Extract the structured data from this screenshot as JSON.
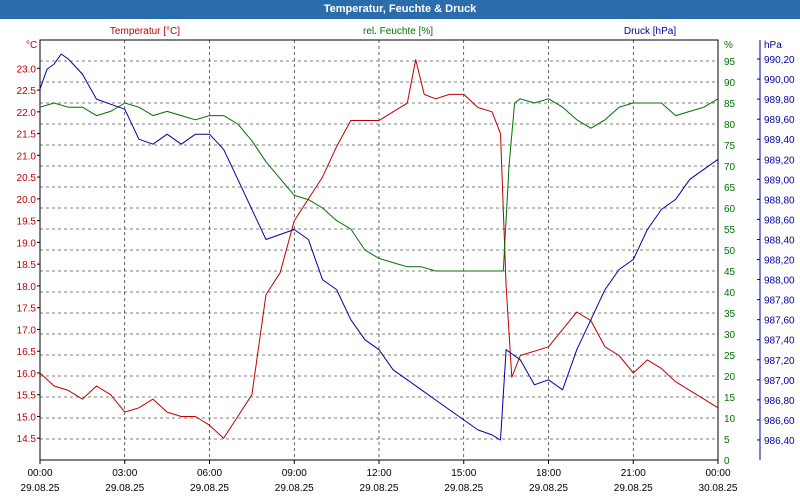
{
  "window": {
    "title": "Temperatur, Feuchte & Druck"
  },
  "colors": {
    "temperature": "#c00000",
    "humidity": "#007000",
    "pressure": "#0000a0",
    "grid": "#000000",
    "title_bg": "#2b6cad"
  },
  "chart_data": {
    "type": "line",
    "title": "Temperatur, Feuchte & Druck",
    "x": {
      "unit": "hours",
      "range": [
        0,
        24
      ],
      "tick_times": [
        "00:00",
        "03:00",
        "06:00",
        "09:00",
        "12:00",
        "15:00",
        "18:00",
        "21:00",
        "00:00"
      ],
      "tick_dates": [
        "29.08.25",
        "29.08.25",
        "29.08.25",
        "29.08.25",
        "29.08.25",
        "29.08.25",
        "29.08.25",
        "29.08.25",
        "30.08.25"
      ]
    },
    "axes": {
      "temperature": {
        "label": "Temperatur [°C]",
        "unit": "°C",
        "range": [
          14.0,
          23.65
        ],
        "ticks": [
          "14.5",
          "15.0",
          "15.5",
          "16.0",
          "16.5",
          "17.0",
          "17.5",
          "18.0",
          "18.5",
          "19.0",
          "19.5",
          "20.0",
          "20.5",
          "21.0",
          "21.5",
          "22.0",
          "22.5",
          "23.0"
        ]
      },
      "humidity": {
        "label": "rel. Feuchte [%]",
        "unit": "%",
        "range": [
          0,
          100
        ],
        "ticks": [
          "0",
          "5",
          "10",
          "15",
          "20",
          "25",
          "30",
          "35",
          "40",
          "45",
          "50",
          "55",
          "60",
          "65",
          "70",
          "75",
          "80",
          "85",
          "90",
          "95"
        ]
      },
      "pressure": {
        "label": "Druck [hPa]",
        "unit": "hPa",
        "range": [
          986.2,
          990.39
        ],
        "ticks": [
          "986,40",
          "986,60",
          "986,80",
          "987,00",
          "987,20",
          "987,40",
          "987,60",
          "987,80",
          "988,00",
          "988,20",
          "988,40",
          "988,60",
          "988,80",
          "989,00",
          "989,20",
          "989,40",
          "989,60",
          "989,80",
          "990,00",
          "990,20"
        ]
      }
    },
    "series": [
      {
        "name": "Temperatur [°C]",
        "axis": "temperature",
        "x": [
          0,
          0.5,
          1,
          1.5,
          2,
          2.5,
          3,
          3.5,
          4,
          4.5,
          5,
          5.5,
          6,
          6.5,
          7,
          7.5,
          8,
          8.5,
          9,
          9.5,
          10,
          10.5,
          11,
          11.5,
          12,
          12.5,
          13,
          13.3,
          13.6,
          14,
          14.5,
          15,
          15.5,
          16,
          16.3,
          16.5,
          16.7,
          17,
          17.5,
          18,
          18.5,
          19,
          19.5,
          20,
          20.5,
          21,
          21.5,
          22,
          22.5,
          23,
          23.5,
          24
        ],
        "values": [
          16.0,
          15.7,
          15.6,
          15.4,
          15.7,
          15.5,
          15.1,
          15.2,
          15.4,
          15.1,
          15.0,
          15.0,
          14.8,
          14.5,
          15.0,
          15.5,
          17.8,
          18.3,
          19.5,
          20.0,
          20.5,
          21.2,
          21.8,
          21.8,
          21.8,
          22.0,
          22.2,
          23.2,
          22.4,
          22.3,
          22.4,
          22.4,
          22.1,
          22.0,
          21.5,
          18.0,
          15.9,
          16.4,
          16.5,
          16.6,
          17.0,
          17.4,
          17.2,
          16.6,
          16.4,
          16.0,
          16.3,
          16.1,
          15.8,
          15.6,
          15.4,
          15.2
        ]
      },
      {
        "name": "rel. Feuchte [%]",
        "axis": "humidity",
        "x": [
          0,
          0.5,
          1,
          1.5,
          2,
          2.5,
          3,
          3.5,
          4,
          4.5,
          5,
          5.5,
          6,
          6.5,
          7,
          7.5,
          8,
          8.5,
          9,
          9.5,
          10,
          10.5,
          11,
          11.5,
          12,
          12.5,
          13,
          13.5,
          14,
          14.5,
          15,
          15.5,
          16,
          16.4,
          16.6,
          16.8,
          17,
          17.5,
          18,
          18.5,
          19,
          19.5,
          20,
          20.5,
          21,
          21.5,
          22,
          22.5,
          23,
          23.5,
          24
        ],
        "values": [
          84,
          85,
          84,
          84,
          82,
          83,
          85,
          84,
          82,
          83,
          82,
          81,
          82,
          82,
          80,
          76,
          71,
          67,
          63,
          62,
          60,
          57,
          55,
          50,
          48,
          47,
          46,
          46,
          45,
          45,
          45,
          45,
          45,
          45,
          70,
          85,
          86,
          85,
          86,
          84,
          81,
          79,
          81,
          84,
          85,
          85,
          85,
          82,
          83,
          84,
          86
        ]
      },
      {
        "name": "Druck [hPa]",
        "axis": "pressure",
        "x": [
          0,
          0.25,
          0.5,
          0.75,
          1,
          1.5,
          2,
          2.5,
          3,
          3.5,
          4,
          4.5,
          5,
          5.5,
          6,
          6.5,
          7,
          7.5,
          8,
          8.5,
          9,
          9.5,
          10,
          10.5,
          11,
          11.5,
          12,
          12.5,
          13,
          13.5,
          14,
          14.5,
          15,
          15.5,
          16,
          16.3,
          16.5,
          17,
          17.5,
          18,
          18.5,
          19,
          19.5,
          20,
          20.5,
          21,
          21.5,
          22,
          22.5,
          23,
          23.5,
          24
        ],
        "values": [
          989.9,
          990.1,
          990.15,
          990.25,
          990.2,
          990.05,
          989.8,
          989.75,
          989.7,
          989.4,
          989.35,
          989.45,
          989.35,
          989.45,
          989.45,
          989.3,
          989.0,
          988.7,
          988.4,
          988.45,
          988.5,
          988.4,
          988.0,
          987.9,
          987.6,
          987.4,
          987.3,
          987.1,
          987.0,
          986.9,
          986.8,
          986.7,
          986.6,
          986.5,
          986.45,
          986.4,
          987.3,
          987.2,
          986.95,
          987.0,
          986.9,
          987.3,
          987.6,
          987.9,
          988.1,
          988.2,
          988.5,
          988.7,
          988.8,
          989.0,
          989.1,
          989.2
        ]
      }
    ]
  }
}
